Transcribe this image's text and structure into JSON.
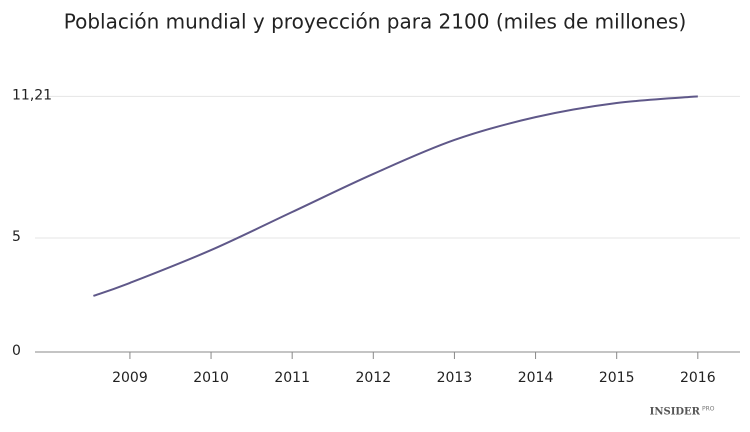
{
  "chart_data": {
    "type": "line",
    "title": "Población mundial y proyección para 2100 (miles de millones)",
    "x": [
      2008.55,
      2009,
      2010,
      2011,
      2012,
      2013,
      2014,
      2015,
      2016
    ],
    "series": [
      {
        "name": "Población mundial",
        "color": "#5f5889",
        "values": [
          2.46,
          3.03,
          4.47,
          6.14,
          7.81,
          9.3,
          10.3,
          10.92,
          11.21
        ]
      }
    ],
    "xlim": [
      2007.83,
      2016.52
    ],
    "xticks": [
      2009,
      2010,
      2011,
      2012,
      2013,
      2014,
      2015,
      2016
    ],
    "ylim": [
      0,
      12.5
    ],
    "yticks": [
      0,
      5,
      {
        "value": 11.21,
        "label": "11,21"
      }
    ],
    "grid": true,
    "brand": {
      "name": "INSIDER",
      "suffix": "PRO"
    }
  }
}
